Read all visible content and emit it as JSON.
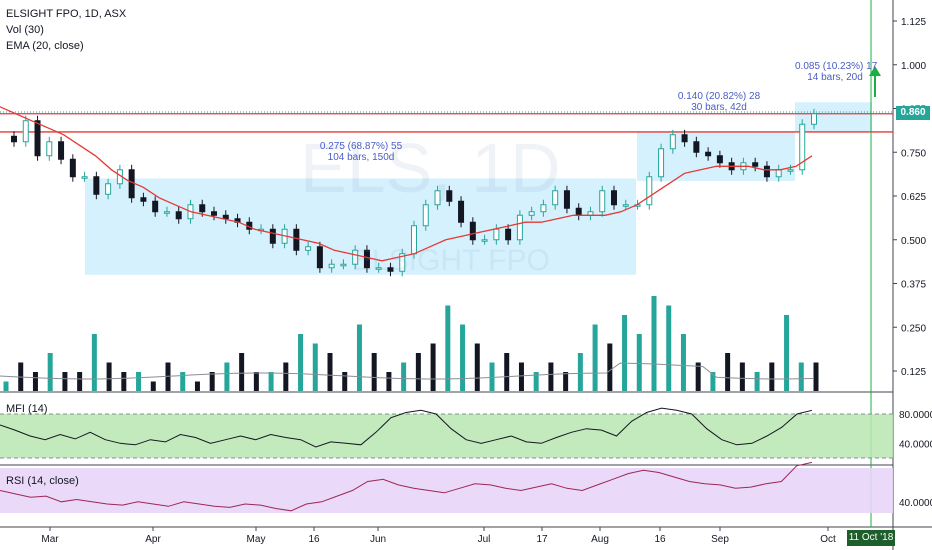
{
  "legend": {
    "symbol": "ELSIGHT FPO, 1D, ASX",
    "volume": "Vol (30)",
    "ema": "EMA (20, close)",
    "mfi": "MFI (14)",
    "rsi": "RSI (14, close)"
  },
  "watermark": {
    "big": "ELS, 1D",
    "small": "ELSIGHT FPO"
  },
  "annotations": [
    {
      "line1": "0.275 (68.87%) 55",
      "line2": "104 bars, 150d"
    },
    {
      "line1": "0.140 (20.82%) 28",
      "line2": "30 bars, 42d"
    },
    {
      "line1": "0.085 (10.23%) 17",
      "line2": "14 bars, 20d"
    }
  ],
  "last_price": "0.860",
  "crosshair_date": "11 Oct '18",
  "colors": {
    "up": "#26a69a",
    "down": "#131722",
    "ema": "#e53935",
    "levels": "#e53935",
    "box": "#b3e5fc",
    "mfi_fill": "#b9e6b0",
    "rsi_fill": "#e8d5f7",
    "rsi_line": "#9c2757",
    "arrow": "#19b042"
  },
  "chart_data": {
    "type": "candlestick",
    "title": "ELSIGHT FPO, 1D, ASX",
    "price_axis": {
      "ticks": [
        "1.125",
        "1.000",
        "0.875",
        "0.750",
        "0.625",
        "0.500",
        "0.375",
        "0.250",
        "0.125"
      ],
      "ylim": [
        0.07,
        1.15
      ]
    },
    "x_ticks": [
      "Mar",
      "Apr",
      "May",
      "16",
      "Jun",
      "Jul",
      "17",
      "Aug",
      "16",
      "Sep",
      "Oct"
    ],
    "price": [
      0.78,
      0.84,
      0.74,
      0.78,
      0.73,
      0.68,
      0.68,
      0.63,
      0.66,
      0.7,
      0.62,
      0.61,
      0.58,
      0.58,
      0.56,
      0.6,
      0.58,
      0.57,
      0.56,
      0.55,
      0.53,
      0.53,
      0.49,
      0.53,
      0.47,
      0.48,
      0.42,
      0.43,
      0.43,
      0.47,
      0.42,
      0.42,
      0.41,
      0.46,
      0.54,
      0.6,
      0.64,
      0.61,
      0.55,
      0.5,
      0.5,
      0.53,
      0.5,
      0.57,
      0.58,
      0.6,
      0.64,
      0.59,
      0.57,
      0.58,
      0.64,
      0.6,
      0.6,
      0.6,
      0.68,
      0.76,
      0.8,
      0.78,
      0.75,
      0.74,
      0.72,
      0.7,
      0.72,
      0.71,
      0.68,
      0.7,
      0.7,
      0.83,
      0.86
    ],
    "ema20": [
      0.88,
      0.86,
      0.84,
      0.82,
      0.8,
      0.77,
      0.74,
      0.7,
      0.67,
      0.65,
      0.62,
      0.6,
      0.58,
      0.57,
      0.56,
      0.55,
      0.53,
      0.52,
      0.51,
      0.5,
      0.49,
      0.47,
      0.46,
      0.45,
      0.44,
      0.45,
      0.46,
      0.48,
      0.5,
      0.51,
      0.52,
      0.53,
      0.54,
      0.55,
      0.55,
      0.56,
      0.57,
      0.57,
      0.57,
      0.58,
      0.6,
      0.63,
      0.66,
      0.69,
      0.7,
      0.71,
      0.71,
      0.71,
      0.7,
      0.7,
      0.71,
      0.74
    ],
    "levels": [
      0.86,
      0.808
    ],
    "boxes": [
      {
        "label": "0.275 (68.87%) 55",
        "y_range": [
          0.4,
          0.675
        ]
      },
      {
        "label": "0.140 (20.82%) 28",
        "y_range": [
          0.668,
          0.808
        ]
      },
      {
        "label": "0.085 (10.23%) 17",
        "y_range": [
          0.808,
          0.893
        ]
      }
    ],
    "volume": [
      0.1,
      0.3,
      0.2,
      0.4,
      0.2,
      0.2,
      0.6,
      0.3,
      0.2,
      0.2,
      0.1,
      0.3,
      0.2,
      0.1,
      0.2,
      0.3,
      0.4,
      0.2,
      0.2,
      0.3,
      0.6,
      0.5,
      0.4,
      0.2,
      0.7,
      0.4,
      0.2,
      0.3,
      0.4,
      0.5,
      0.9,
      0.7,
      0.5,
      0.3,
      0.4,
      0.3,
      0.2,
      0.3,
      0.2,
      0.4,
      0.7,
      0.5,
      0.8,
      0.6,
      1.0,
      0.9,
      0.6,
      0.3,
      0.2,
      0.4,
      0.3,
      0.2,
      0.3,
      0.8,
      0.3,
      0.3
    ],
    "mfi": [
      65,
      58,
      50,
      45,
      52,
      46,
      55,
      45,
      40,
      38,
      45,
      42,
      52,
      48,
      40,
      45,
      50,
      45,
      52,
      48,
      45,
      35,
      42,
      40,
      38,
      55,
      75,
      82,
      85,
      80,
      60,
      45,
      40,
      45,
      50,
      42,
      40,
      48,
      55,
      60,
      58,
      50,
      70,
      82,
      88,
      85,
      80,
      60,
      45,
      38,
      40,
      50,
      62,
      80,
      85
    ],
    "mfi_levels": [
      "80.0000",
      "40.0000"
    ],
    "rsi": [
      50,
      47,
      44,
      45,
      40,
      42,
      40,
      38,
      37,
      40,
      38,
      36,
      40,
      38,
      36,
      35,
      38,
      37,
      34,
      32,
      38,
      40,
      45,
      50,
      58,
      60,
      55,
      52,
      50,
      48,
      52,
      56,
      55,
      52,
      50,
      53,
      56,
      52,
      50,
      55,
      60,
      65,
      68,
      66,
      62,
      58,
      56,
      55,
      52,
      53,
      56,
      58,
      72,
      75
    ],
    "rsi_levels": [
      "40.0000"
    ]
  }
}
